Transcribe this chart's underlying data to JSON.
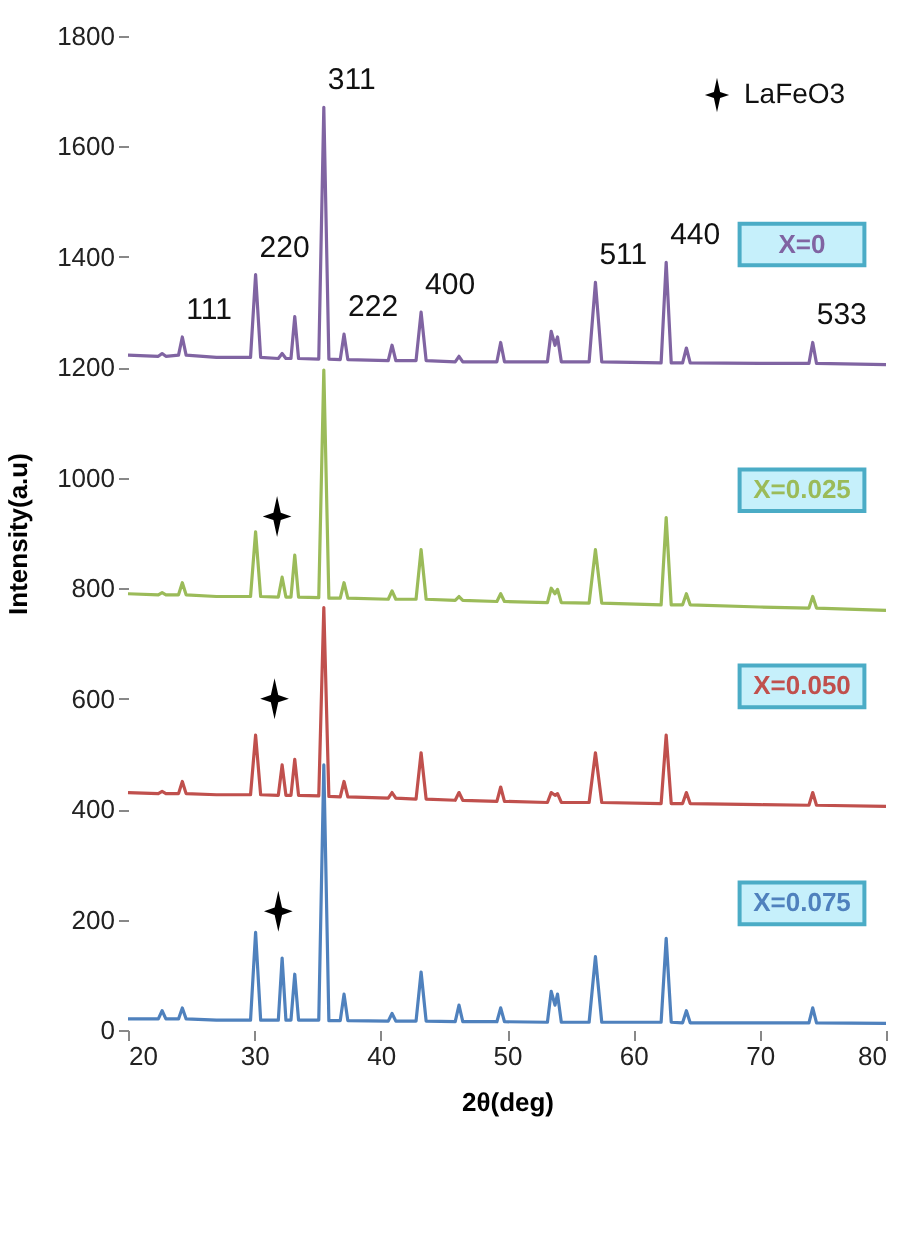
{
  "chart_data": {
    "type": "line",
    "xlabel": "2θ(deg)",
    "ylabel": "Intensity(a.u)",
    "xlim": [
      20,
      80
    ],
    "xticks": [
      20,
      30,
      40,
      50,
      60,
      70,
      80
    ],
    "ylim": [
      0,
      1800
    ],
    "yticks": [
      0,
      200,
      400,
      600,
      800,
      1000,
      1200,
      1400,
      1600,
      1800
    ],
    "grid": false,
    "legend": "top right",
    "x": [
      20,
      22.4,
      22.7,
      23.0,
      24.0,
      24.3,
      24.6,
      27,
      29.7,
      30.1,
      30.5,
      31.9,
      32.2,
      32.5,
      32.9,
      33.2,
      33.5,
      35.1,
      35.5,
      35.9,
      36.8,
      37.1,
      37.4,
      40.6,
      40.9,
      41.2,
      42.8,
      43.2,
      43.6,
      45.9,
      46.2,
      46.5,
      49.2,
      49.5,
      49.8,
      53.2,
      53.5,
      53.8,
      54.0,
      54.3,
      56.5,
      57.0,
      57.5,
      62.2,
      62.6,
      63.0,
      63.9,
      64.2,
      64.5,
      70,
      73.9,
      74.2,
      74.5,
      80
    ],
    "series": [
      {
        "name": "X=0",
        "color": "#8064a2",
        "values": [
          1222,
          1220,
          1225,
          1220,
          1222,
          1255,
          1222,
          1218,
          1218,
          1368,
          1218,
          1216,
          1225,
          1216,
          1216,
          1292,
          1216,
          1215,
          1671,
          1215,
          1214,
          1260,
          1214,
          1212,
          1240,
          1212,
          1212,
          1300,
          1212,
          1210,
          1220,
          1210,
          1210,
          1245,
          1210,
          1210,
          1265,
          1240,
          1255,
          1210,
          1210,
          1354,
          1210,
          1208,
          1390,
          1208,
          1208,
          1235,
          1208,
          1207,
          1207,
          1245,
          1207,
          1205
        ]
      },
      {
        "name": "X=0.025",
        "color": "#9bbb59",
        "values": [
          790,
          788,
          792,
          788,
          788,
          810,
          788,
          785,
          785,
          902,
          785,
          784,
          820,
          784,
          784,
          860,
          784,
          783,
          1195,
          782,
          782,
          810,
          782,
          780,
          795,
          780,
          780,
          870,
          780,
          778,
          785,
          778,
          776,
          790,
          776,
          774,
          800,
          790,
          798,
          774,
          773,
          870,
          773,
          770,
          928,
          770,
          770,
          790,
          770,
          766,
          764,
          785,
          764,
          760
        ]
      },
      {
        "name": "X=0.050",
        "color": "#c0504d",
        "values": [
          430,
          428,
          432,
          428,
          428,
          450,
          428,
          426,
          426,
          534,
          426,
          425,
          480,
          425,
          425,
          490,
          425,
          424,
          765,
          423,
          422,
          450,
          422,
          420,
          430,
          420,
          418,
          502,
          418,
          416,
          430,
          416,
          414,
          440,
          414,
          412,
          430,
          425,
          428,
          412,
          412,
          502,
          412,
          410,
          534,
          410,
          410,
          430,
          410,
          408,
          407,
          430,
          407,
          405
        ]
      },
      {
        "name": "X=0.075",
        "color": "#4f81bd",
        "values": [
          20,
          20,
          35,
          20,
          20,
          40,
          20,
          18,
          18,
          177,
          18,
          18,
          130,
          18,
          18,
          101,
          18,
          18,
          480,
          17,
          17,
          65,
          17,
          16,
          30,
          16,
          16,
          105,
          16,
          15,
          45,
          15,
          15,
          40,
          15,
          14,
          70,
          45,
          65,
          14,
          14,
          133,
          14,
          14,
          166,
          14,
          13,
          35,
          13,
          13,
          13,
          40,
          13,
          12
        ]
      },
      {
        "name": "LaFeO3",
        "type": "scatter",
        "marker": "star",
        "color": "#000000",
        "x": [
          31.8,
          31.6,
          31.9
        ],
        "values": [
          930,
          600,
          215
        ]
      }
    ],
    "annotations": [
      {
        "text": "111",
        "x": 24.3,
        "y": 1255
      },
      {
        "text": "220",
        "x": 30.1,
        "y": 1368
      },
      {
        "text": "311",
        "x": 35.5,
        "y": 1671
      },
      {
        "text": "222",
        "x": 37.1,
        "y": 1260
      },
      {
        "text": "400",
        "x": 43.2,
        "y": 1300
      },
      {
        "text": "511",
        "x": 57.0,
        "y": 1354
      },
      {
        "text": "440",
        "x": 62.6,
        "y": 1390
      },
      {
        "text": "533",
        "x": 74.2,
        "y": 1245
      }
    ]
  }
}
